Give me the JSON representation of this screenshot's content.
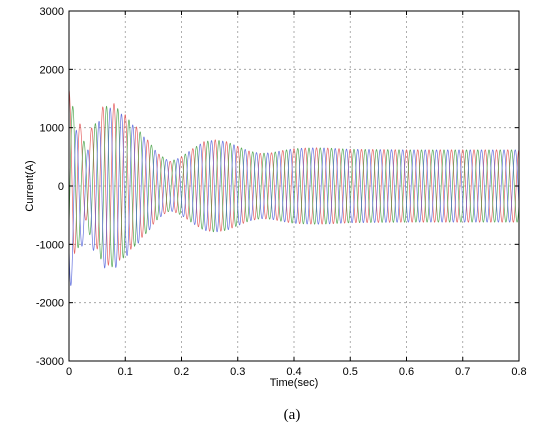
{
  "caption": "(a)",
  "chart_data": {
    "type": "line",
    "title": "",
    "xlabel": "Time(sec)",
    "ylabel": "Current(A)",
    "xlim": [
      0,
      0.8
    ],
    "ylim": [
      -3000,
      3000
    ],
    "x_ticks": [
      0,
      0.1,
      0.2,
      0.3,
      0.4,
      0.5,
      0.6,
      0.7,
      0.8
    ],
    "x_tick_labels": [
      "0",
      "0.1",
      "0.2",
      "0.3",
      "0.4",
      "0.5",
      "0.6",
      "0.7",
      "0.8"
    ],
    "y_ticks": [
      -3000,
      -2000,
      -1000,
      0,
      1000,
      2000,
      3000
    ],
    "y_tick_labels": [
      "-3000",
      "-2000",
      "-1000",
      "0",
      "1000",
      "2000",
      "3000"
    ],
    "grid": true,
    "legend": "none",
    "frequency_hz": 50,
    "envelope": {
      "t": [
        0,
        0.01,
        0.02,
        0.03,
        0.04,
        0.05,
        0.06,
        0.07,
        0.08,
        0.09,
        0.1,
        0.12,
        0.14,
        0.16,
        0.18,
        0.2,
        0.22,
        0.24,
        0.26,
        0.28,
        0.3,
        0.32,
        0.34,
        0.36,
        0.38,
        0.4,
        0.42,
        0.44,
        0.46,
        0.48,
        0.5,
        0.55,
        0.6,
        0.65,
        0.7,
        0.75,
        0.8
      ],
      "amp": [
        1400,
        1350,
        900,
        700,
        900,
        1150,
        1300,
        1400,
        1380,
        1300,
        1200,
        1000,
        780,
        540,
        420,
        500,
        640,
        760,
        790,
        760,
        680,
        600,
        560,
        570,
        610,
        640,
        650,
        655,
        650,
        640,
        630,
        625,
        620,
        620,
        620,
        620,
        620
      ]
    },
    "series": [
      {
        "name": "",
        "color": "#e04848",
        "phase_deg": 90
      },
      {
        "name": "",
        "color": "#3a9a3a",
        "phase_deg": -30
      },
      {
        "name": "",
        "color": "#4a5ad8",
        "phase_deg": 210
      }
    ]
  }
}
